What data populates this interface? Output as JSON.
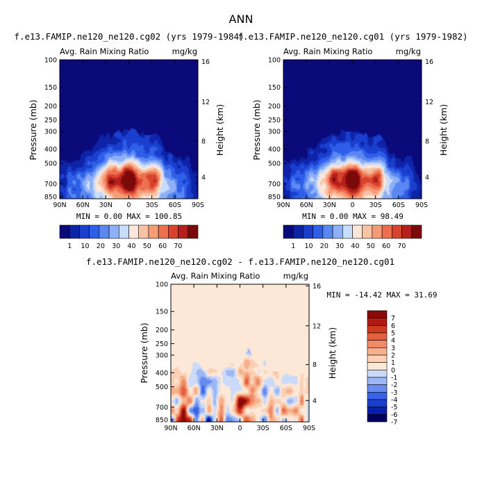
{
  "page_title": "ANN",
  "chart_data": [
    {
      "type": "heatmap",
      "id": "panel1",
      "title": "f.e13.FAMIP.ne120_ne120.cg02 (yrs 1979-1984)",
      "left_label": "Avg. Rain Mixing Ratio",
      "right_label": "mg/kg",
      "ylabel": "Pressure (mb)",
      "ylabel_right": "Height (km)",
      "x_ticks": [
        "90N",
        "60N",
        "30N",
        "0",
        "30S",
        "60S",
        "90S"
      ],
      "y_ticks": [
        "100",
        "150",
        "200",
        "250",
        "300",
        "400",
        "500",
        "700",
        "850"
      ],
      "y_ticks_right": [
        "16",
        "12",
        "8",
        "4"
      ],
      "min_max_text": "MIN = 0.00 MAX = 100.85",
      "min": 0.0,
      "max": 100.85,
      "colorbar_labels": [
        "1",
        "10",
        "20",
        "30",
        "40",
        "50",
        "60",
        "70"
      ]
    },
    {
      "type": "heatmap",
      "id": "panel2",
      "title": "f.e13.FAMIP.ne120_ne120.cg01 (yrs 1979-1982)",
      "left_label": "Avg. Rain Mixing Ratio",
      "right_label": "mg/kg",
      "ylabel": "Pressure (mb)",
      "ylabel_right": "Height (km)",
      "x_ticks": [
        "90N",
        "60N",
        "30N",
        "0",
        "30S",
        "60S",
        "90S"
      ],
      "y_ticks": [
        "100",
        "150",
        "200",
        "250",
        "300",
        "400",
        "500",
        "700",
        "850"
      ],
      "y_ticks_right": [
        "16",
        "12",
        "8",
        "4"
      ],
      "min_max_text": "MIN = 0.00 MAX = 98.49",
      "min": 0.0,
      "max": 98.49,
      "colorbar_labels": [
        "1",
        "10",
        "20",
        "30",
        "40",
        "50",
        "60",
        "70"
      ]
    },
    {
      "type": "heatmap",
      "id": "panel3",
      "title": "f.e13.FAMIP.ne120_ne120.cg02 - f.e13.FAMIP.ne120_ne120.cg01",
      "left_label": "Avg. Rain Mixing Ratio",
      "right_label": "mg/kg",
      "ylabel": "Pressure (mb)",
      "ylabel_right": "Height (km)",
      "x_ticks": [
        "90N",
        "60N",
        "30N",
        "0",
        "30S",
        "60S",
        "90S"
      ],
      "y_ticks": [
        "100",
        "150",
        "200",
        "250",
        "300",
        "400",
        "500",
        "700",
        "850"
      ],
      "y_ticks_right": [
        "16",
        "12",
        "8",
        "4"
      ],
      "min_max_text": "MIN = -14.42 MAX = 31.69",
      "min": -14.42,
      "max": 31.69,
      "colorbar_labels": [
        "7",
        "6",
        "5",
        "4",
        "3",
        "2",
        "1",
        "0",
        "-1",
        "-2",
        "-3",
        "-4",
        "-5",
        "-6",
        "-7"
      ]
    }
  ],
  "colors": {
    "sequential": [
      "#0a0a7a",
      "#0d23a8",
      "#1a3fcf",
      "#2f5fe8",
      "#5a87f2",
      "#8fb0f7",
      "#c8dcfb",
      "#fbe6dc",
      "#f8c2a5",
      "#f49b77",
      "#ec6f4f",
      "#d8432e",
      "#b5201c",
      "#7d0a0a"
    ],
    "diverging": [
      "#00005f",
      "#0a1fa8",
      "#1a3fd0",
      "#3a62e6",
      "#6a8cee",
      "#9db6f4",
      "#cbdaf8",
      "#fde8d8",
      "#fbd0b4",
      "#f7b08c",
      "#f18a66",
      "#e4613f",
      "#cf3a22",
      "#b01a12",
      "#8a0a0a"
    ]
  }
}
